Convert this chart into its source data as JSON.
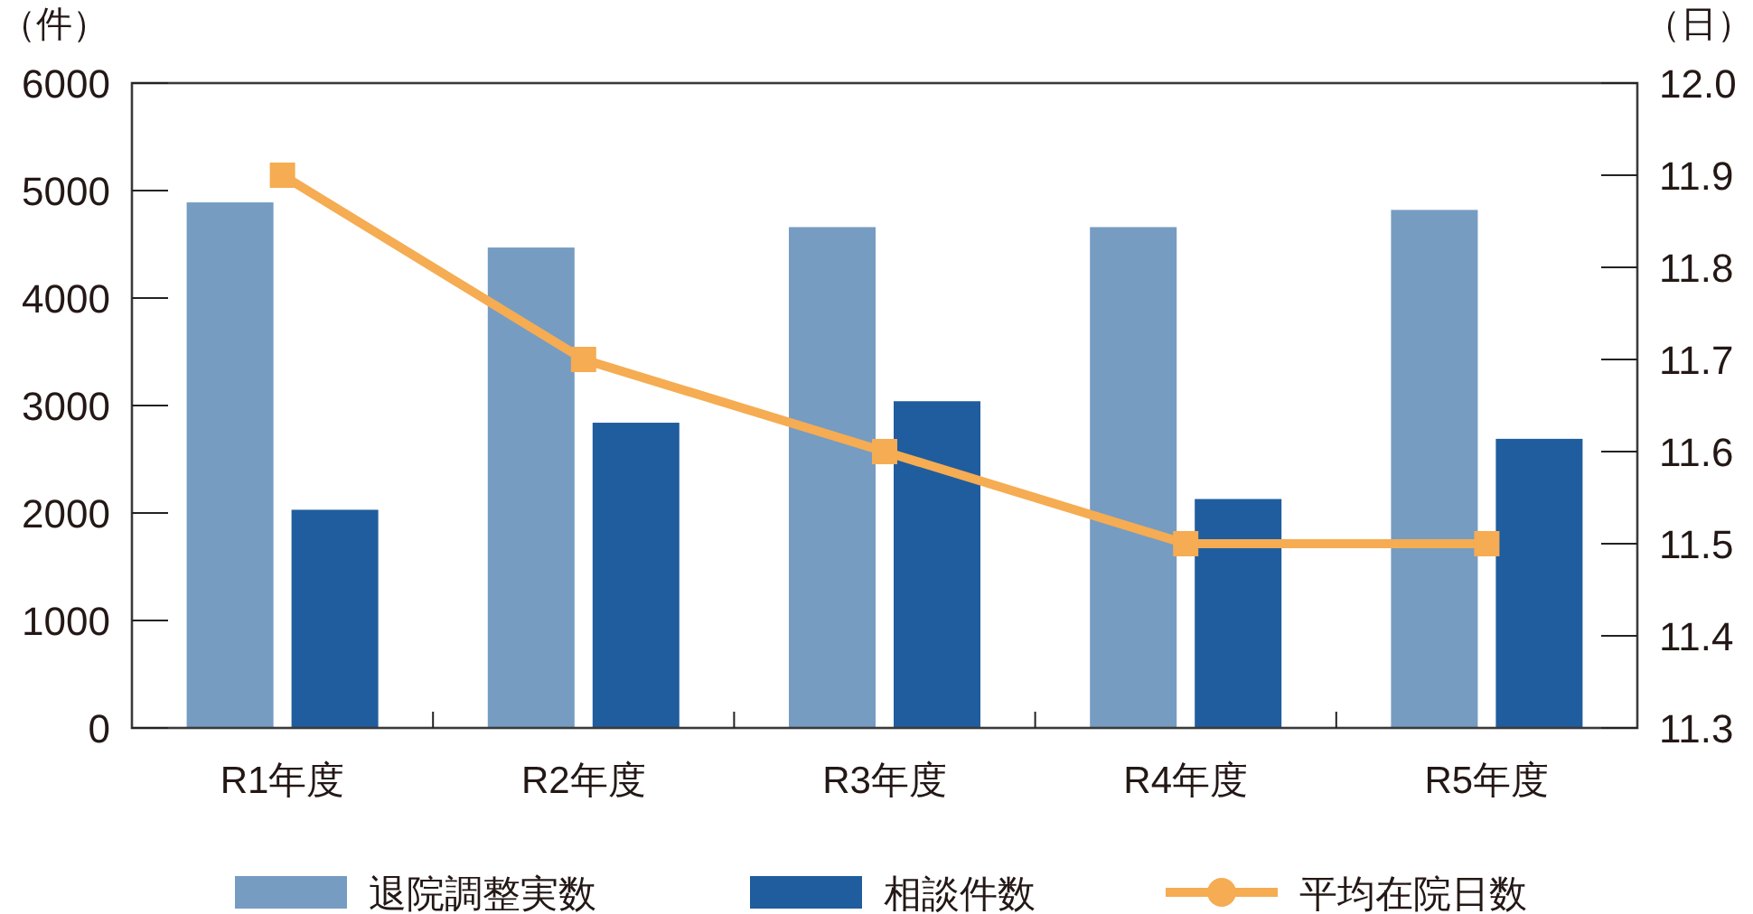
{
  "chart_data": {
    "type": "bar",
    "ylabel": "（件）",
    "y2label": "（日）",
    "categories": [
      "R1年度",
      "R2年度",
      "R3年度",
      "R4年度",
      "R5年度"
    ],
    "series": [
      {
        "name": "退院調整実数",
        "color": "#769cc2",
        "values": [
          4890,
          4470,
          4660,
          4660,
          4820
        ]
      },
      {
        "name": "相談件数",
        "color": "#205d9e",
        "values": [
          2030,
          2840,
          3040,
          2130,
          2690
        ]
      },
      {
        "name": "平均在院日数",
        "type": "line",
        "axis": "y2",
        "color": "#f5ac52",
        "marker": "square",
        "values": [
          11.9,
          11.7,
          11.6,
          11.5,
          11.5
        ]
      }
    ],
    "ylim": [
      0,
      6000
    ],
    "yticks": [
      0,
      1000,
      2000,
      3000,
      4000,
      5000,
      6000
    ],
    "y2lim": [
      11.3,
      12.0
    ],
    "y2ticks": [
      {
        "value": 11.3,
        "label": "11.3"
      },
      {
        "value": 11.4,
        "label": "11.4"
      },
      {
        "value": 11.5,
        "label": "11.5"
      },
      {
        "value": 11.6,
        "label": "11.6"
      },
      {
        "value": 11.7,
        "label": "11.7"
      },
      {
        "value": 11.8,
        "label": "11.8"
      },
      {
        "value": 11.9,
        "label": "11.9"
      },
      {
        "value": 12.0,
        "label": "12.0"
      }
    ],
    "grid": false,
    "legend": "bottom"
  }
}
